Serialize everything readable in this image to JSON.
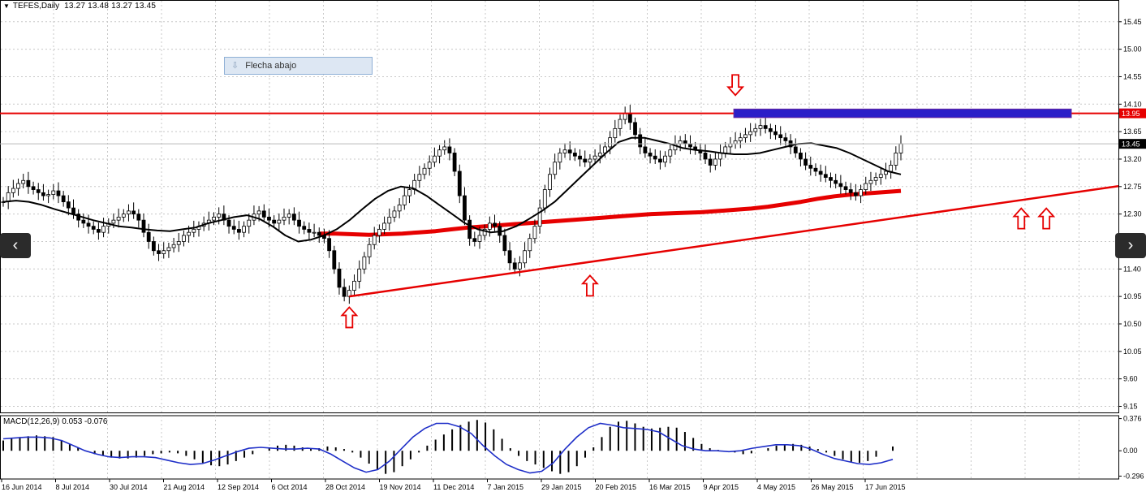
{
  "header": {
    "symbol": "TEFES,Daily",
    "ohlc": "13.27 13.48 13.27 13.45"
  },
  "tooltip": {
    "label": "Flecha abajo"
  },
  "macd": {
    "label": "MACD(12,26,9) 0.053 -0.076",
    "axis_ticks": [
      "0.376",
      "0.00",
      "-0.296"
    ]
  },
  "navigation": {
    "prev_icon": "chevron-left-icon",
    "next_icon": "chevron-right-icon"
  },
  "colors": {
    "candles": "#000000",
    "resistance_line": "#e60000",
    "resistance_zone": "#2b1ec8",
    "trendline": "#e60000",
    "moving_average_long": "#e60000",
    "moving_average_short": "#000000",
    "macd_signal": "#1f2fc8",
    "price_label_bg": "#000000"
  },
  "chart_data": {
    "type": "line",
    "price_axis_ticks": [
      15.45,
      15.0,
      14.55,
      14.1,
      13.65,
      13.2,
      12.75,
      12.3,
      11.85,
      11.4,
      10.95,
      10.5,
      10.05,
      9.6,
      9.15
    ],
    "ylim": [
      9.05,
      15.7
    ],
    "x_labels": [
      "16 Jun 2014",
      "8 Jul 2014",
      "30 Jul 2014",
      "21 Aug 2014",
      "12 Sep 2014",
      "6 Oct 2014",
      "28 Oct 2014",
      "19 Nov 2014",
      "11 Dec 2014",
      "7 Jan 2015",
      "29 Jan 2015",
      "20 Feb 2015",
      "16 Mar 2015",
      "9 Apr 2015",
      "4 May 2015",
      "26 May 2015",
      "17 Jun 2015"
    ],
    "price_labels": {
      "resistance": "13.95",
      "current": "13.45"
    },
    "resistance_level": 13.95,
    "current_price": 13.45,
    "resistance_zone": [
      13.88,
      14.02
    ],
    "x_labels_index": [
      0,
      16,
      32,
      48,
      64,
      80,
      96,
      112,
      128,
      144,
      160,
      176,
      192,
      208,
      224,
      240,
      256
    ],
    "price_close": [
      12.5,
      12.65,
      12.72,
      12.8,
      12.85,
      12.75,
      12.7,
      12.65,
      12.6,
      12.62,
      12.68,
      12.6,
      12.5,
      12.4,
      12.3,
      12.2,
      12.15,
      12.1,
      12.05,
      12.0,
      12.1,
      12.15,
      12.2,
      12.25,
      12.3,
      12.35,
      12.3,
      12.2,
      12.0,
      11.85,
      11.7,
      11.65,
      11.7,
      11.75,
      11.8,
      11.85,
      11.95,
      12.0,
      12.05,
      12.1,
      12.15,
      12.2,
      12.25,
      12.3,
      12.2,
      12.1,
      12.05,
      12.0,
      12.1,
      12.2,
      12.3,
      12.35,
      12.25,
      12.2,
      12.15,
      12.2,
      12.25,
      12.3,
      12.2,
      12.1,
      12.05,
      12.0,
      12.0,
      11.95,
      11.9,
      11.7,
      11.4,
      11.1,
      10.95,
      11.05,
      11.2,
      11.4,
      11.6,
      11.8,
      11.95,
      12.05,
      12.15,
      12.25,
      12.35,
      12.45,
      12.6,
      12.7,
      12.85,
      12.95,
      13.05,
      13.15,
      13.25,
      13.35,
      13.4,
      13.3,
      13.0,
      12.6,
      12.2,
      11.9,
      11.85,
      11.95,
      12.05,
      12.15,
      12.1,
      11.95,
      11.7,
      11.5,
      11.4,
      11.5,
      11.7,
      11.9,
      12.1,
      12.4,
      12.7,
      12.95,
      13.15,
      13.3,
      13.35,
      13.3,
      13.25,
      13.2,
      13.15,
      13.2,
      13.25,
      13.3,
      13.4,
      13.55,
      13.7,
      13.85,
      13.95,
      13.8,
      13.6,
      13.4,
      13.3,
      13.25,
      13.2,
      13.15,
      13.25,
      13.35,
      13.45,
      13.5,
      13.45,
      13.4,
      13.35,
      13.3,
      13.2,
      13.1,
      13.2,
      13.3,
      13.4,
      13.45,
      13.5,
      13.55,
      13.6,
      13.65,
      13.7,
      13.75,
      13.7,
      13.65,
      13.6,
      13.55,
      13.5,
      13.4,
      13.3,
      13.2,
      13.1,
      13.05,
      13.0,
      12.95,
      12.9,
      12.85,
      12.8,
      12.75,
      12.7,
      12.65,
      12.6,
      12.7,
      12.8,
      12.85,
      12.9,
      12.95,
      13.0,
      13.1,
      13.3,
      13.45
    ],
    "ma_short": [
      12.5,
      12.52,
      12.5,
      12.45,
      12.38,
      12.32,
      12.26,
      12.2,
      12.15,
      12.1,
      12.08,
      12.05,
      12.03,
      12.02,
      12.05,
      12.08,
      12.15,
      12.2,
      12.25,
      12.28,
      12.22,
      12.1,
      11.95,
      11.85,
      11.88,
      11.95,
      12.05,
      12.2,
      12.38,
      12.55,
      12.68,
      12.75,
      12.72,
      12.6,
      12.45,
      12.3,
      12.15,
      12.05,
      12.0,
      12.02,
      12.1,
      12.22,
      12.35,
      12.5,
      12.7,
      12.9,
      13.1,
      13.3,
      13.48,
      13.55,
      13.55,
      13.5,
      13.45,
      13.38,
      13.35,
      13.33,
      13.3,
      13.28,
      13.28,
      13.3,
      13.35,
      13.4,
      13.45,
      13.46,
      13.42,
      13.38,
      13.3,
      13.2,
      13.1,
      13.0,
      12.95
    ],
    "ma_long": [
      11.98,
      11.98,
      11.97,
      11.96,
      11.97,
      11.98,
      12.0,
      12.02,
      12.05,
      12.08,
      12.1,
      12.12,
      12.14,
      12.16,
      12.18,
      12.2,
      12.22,
      12.24,
      12.26,
      12.28,
      12.3,
      12.31,
      12.32,
      12.33,
      12.35,
      12.37,
      12.39,
      12.42,
      12.46,
      12.5,
      12.55,
      12.59,
      12.62,
      12.64,
      12.66,
      12.68
    ],
    "trendline": [
      [
        69,
        10.95
      ],
      [
        265,
        13.26
      ]
    ],
    "arrows": [
      {
        "direction": "up",
        "index": 69,
        "price": 10.6
      },
      {
        "direction": "up",
        "index": 117,
        "price": 11.12
      },
      {
        "direction": "down",
        "index": 146,
        "price": 14.42
      },
      {
        "direction": "up",
        "index": 203,
        "price": 12.22
      },
      {
        "direction": "up",
        "index": 208,
        "price": 12.22
      }
    ],
    "macd_histogram": [
      0.12,
      0.14,
      0.16,
      0.17,
      0.18,
      0.17,
      0.16,
      0.12,
      0.08,
      0.04,
      0.0,
      -0.04,
      -0.06,
      -0.08,
      -0.09,
      -0.09,
      -0.08,
      -0.06,
      -0.04,
      -0.03,
      -0.02,
      -0.03,
      -0.06,
      -0.1,
      -0.14,
      -0.17,
      -0.18,
      -0.16,
      -0.12,
      -0.08,
      -0.04,
      0.0,
      0.04,
      0.06,
      0.07,
      0.06,
      0.04,
      0.02,
      0.03,
      0.05,
      0.04,
      0.02,
      -0.02,
      -0.08,
      -0.15,
      -0.22,
      -0.27,
      -0.25,
      -0.18,
      -0.1,
      -0.02,
      0.06,
      0.13,
      0.19,
      0.25,
      0.3,
      0.34,
      0.36,
      0.33,
      0.25,
      0.14,
      0.03,
      -0.06,
      -0.12,
      -0.16,
      -0.2,
      -0.24,
      -0.27,
      -0.25,
      -0.18,
      -0.08,
      0.04,
      0.16,
      0.28,
      0.34,
      0.35,
      0.32,
      0.28,
      0.26,
      0.27,
      0.28,
      0.27,
      0.22,
      0.15,
      0.08,
      0.03,
      0.01,
      0.0,
      -0.02,
      -0.04,
      -0.03,
      0.0,
      0.03,
      0.06,
      0.07,
      0.08,
      0.07,
      0.05,
      0.02,
      -0.02,
      -0.06,
      -0.1,
      -0.13,
      -0.14,
      -0.12,
      -0.07,
      0.0,
      0.05
    ],
    "macd_signal": [
      0.14,
      0.15,
      0.16,
      0.16,
      0.15,
      0.12,
      0.06,
      0.0,
      -0.04,
      -0.07,
      -0.08,
      -0.07,
      -0.07,
      -0.08,
      -0.11,
      -0.14,
      -0.16,
      -0.15,
      -0.11,
      -0.06,
      -0.01,
      0.03,
      0.04,
      0.03,
      0.02,
      0.02,
      0.03,
      0.02,
      -0.04,
      -0.12,
      -0.2,
      -0.25,
      -0.22,
      -0.12,
      0.02,
      0.16,
      0.26,
      0.32,
      0.32,
      0.28,
      0.2,
      0.06,
      -0.06,
      -0.16,
      -0.22,
      -0.26,
      -0.24,
      -0.14,
      0.02,
      0.16,
      0.27,
      0.32,
      0.3,
      0.27,
      0.26,
      0.25,
      0.22,
      0.14,
      0.06,
      0.02,
      0.0,
      0.0,
      -0.01,
      0.0,
      0.03,
      0.05,
      0.07,
      0.07,
      0.06,
      0.02,
      -0.04,
      -0.09,
      -0.12,
      -0.15,
      -0.16,
      -0.14,
      -0.1
    ],
    "macd_ylim": [
      -0.33,
      0.41
    ]
  }
}
